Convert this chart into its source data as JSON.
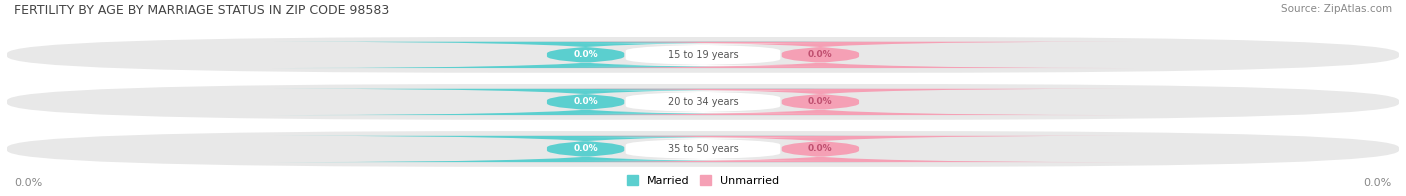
{
  "title": "FERTILITY BY AGE BY MARRIAGE STATUS IN ZIP CODE 98583",
  "source": "Source: ZipAtlas.com",
  "categories": [
    "15 to 19 years",
    "20 to 34 years",
    "35 to 50 years"
  ],
  "married_values": [
    0.0,
    0.0,
    0.0
  ],
  "unmarried_values": [
    0.0,
    0.0,
    0.0
  ],
  "married_color": "#5bcfcf",
  "unmarried_color": "#f5a0b5",
  "row_color": "#e8e8e8",
  "title_fontsize": 9,
  "source_fontsize": 7.5,
  "background_color": "#ffffff",
  "axis_label_color": "#888888",
  "center_label_color": "#555555",
  "married_text_color": "#ffffff",
  "unmarried_text_color": "#c05070"
}
